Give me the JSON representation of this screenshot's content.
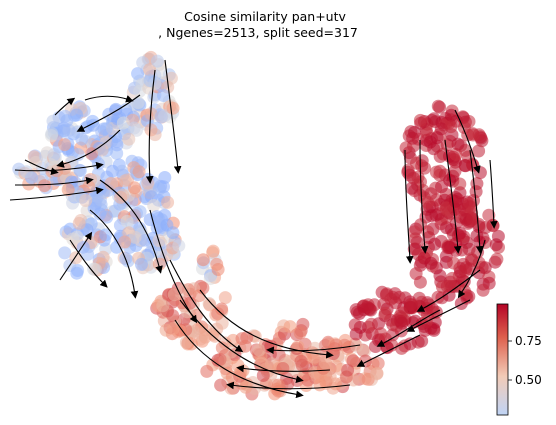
{
  "chart_data": {
    "type": "scatter",
    "title_lines": [
      "Cosine similarity pan+utv",
      ", Ngenes=2513, split seed=317"
    ],
    "xlabel": "",
    "ylabel": "",
    "axes_visible": false,
    "grid": false,
    "overlay": "velocity streamlines (black, with arrowheads)",
    "colormap": {
      "name": "coolwarm",
      "low_color": "#3b4cc0",
      "mid_color": "#dddddd",
      "high_color": "#b40426",
      "range": [
        0.3,
        0.95
      ]
    },
    "colorbar": {
      "placement": "bottom-right",
      "ticks": [
        0.5,
        0.75
      ],
      "tick_labels": [
        "0.50",
        "0.75"
      ]
    },
    "series": [
      {
        "region": "upper-left-branch",
        "cosine_similarity_range": [
          0.45,
          0.82
        ]
      },
      {
        "region": "lower-arc",
        "cosine_similarity_range": [
          0.7,
          0.88
        ]
      },
      {
        "region": "right-branch",
        "cosine_similarity_range": [
          0.9,
          0.95
        ]
      }
    ]
  }
}
